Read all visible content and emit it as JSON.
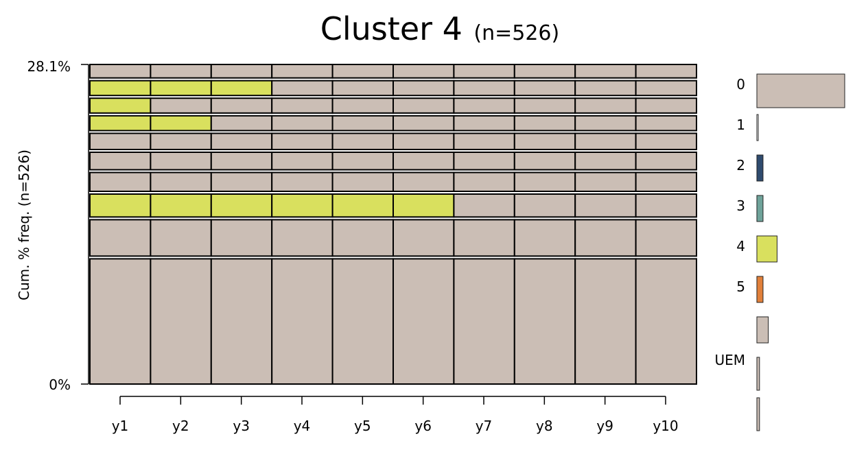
{
  "chart_data": {
    "type": "sequence-frequency",
    "title": "Cluster 4",
    "title_suffix": "(n=526)",
    "ylabel": "Cum. % freq. (n=526)",
    "y_tick_labels": [
      "0%",
      "28.1%"
    ],
    "ylim_percent": [
      0,
      28.1
    ],
    "categories": [
      "y1",
      "y2",
      "y3",
      "y4",
      "y5",
      "y6",
      "y7",
      "y8",
      "y9",
      "y10"
    ],
    "state_colors": {
      "0": "#cbbeb5",
      "1": "#fafafa",
      "2": "#2f4b6e",
      "3": "#6fa39a",
      "4": "#d9e05e",
      "5": "#e1803a",
      "6": "#cbbeb5",
      "7": "#cbbeb5",
      "8": "#cbbeb5"
    },
    "sequences": [
      {
        "rank": 1,
        "percent": 9.3,
        "states": [
          "0",
          "0",
          "0",
          "0",
          "0",
          "0",
          "0",
          "0",
          "0",
          "0"
        ]
      },
      {
        "rank": 2,
        "percent": 2.7,
        "states": [
          "0",
          "0",
          "0",
          "0",
          "0",
          "0",
          "0",
          "0",
          "0",
          "0"
        ]
      },
      {
        "rank": 3,
        "percent": 1.7,
        "states": [
          "4",
          "4",
          "4",
          "4",
          "4",
          "4",
          "0",
          "0",
          "0",
          "0"
        ]
      },
      {
        "rank": 4,
        "percent": 1.4,
        "states": [
          "0",
          "0",
          "0",
          "0",
          "0",
          "0",
          "0",
          "0",
          "0",
          "0"
        ]
      },
      {
        "rank": 5,
        "percent": 1.3,
        "states": [
          "0",
          "0",
          "0",
          "0",
          "0",
          "0",
          "0",
          "0",
          "0",
          "0"
        ]
      },
      {
        "rank": 6,
        "percent": 1.2,
        "states": [
          "0",
          "0",
          "0",
          "0",
          "0",
          "0",
          "0",
          "0",
          "0",
          "0"
        ]
      },
      {
        "rank": 7,
        "percent": 1.1,
        "states": [
          "4",
          "4",
          "0",
          "0",
          "0",
          "0",
          "0",
          "0",
          "0",
          "0"
        ]
      },
      {
        "rank": 8,
        "percent": 1.1,
        "states": [
          "4",
          "0",
          "0",
          "0",
          "0",
          "0",
          "0",
          "0",
          "0",
          "0"
        ]
      },
      {
        "rank": 9,
        "percent": 1.1,
        "states": [
          "4",
          "4",
          "4",
          "0",
          "0",
          "0",
          "0",
          "0",
          "0",
          "0"
        ]
      },
      {
        "rank": 10,
        "percent": 1.0,
        "states": [
          "0",
          "0",
          "0",
          "0",
          "0",
          "0",
          "0",
          "0",
          "0",
          "0"
        ]
      }
    ],
    "legend": {
      "labels": [
        "0",
        "1",
        "2",
        "3",
        "4",
        "5",
        "",
        "UEM",
        ""
      ],
      "relative_frequency": [
        1.0,
        0.005,
        0.07,
        0.07,
        0.23,
        0.07,
        0.13,
        0.03,
        0.03
      ],
      "colors": [
        "#cbbeb5",
        "#fafafa",
        "#2f4b6e",
        "#6fa39a",
        "#d9e05e",
        "#e1803a",
        "#cbbeb5",
        "#cbbeb5",
        "#cbbeb5"
      ]
    }
  }
}
